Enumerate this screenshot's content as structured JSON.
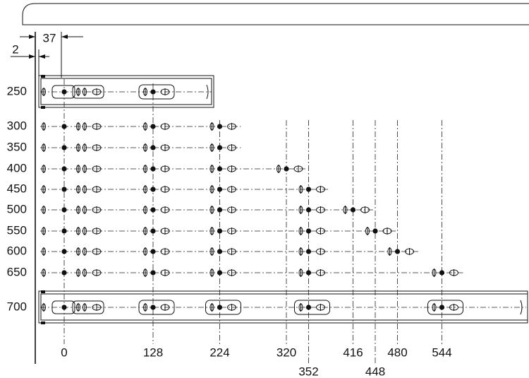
{
  "dimensions": {
    "offset_top": "37",
    "offset_left": "2"
  },
  "rows": [
    "250",
    "300",
    "350",
    "400",
    "450",
    "500",
    "550",
    "600",
    "650",
    "700"
  ],
  "columns": [
    "0",
    "128",
    "224",
    "320",
    "352",
    "416",
    "448",
    "480",
    "544"
  ]
}
